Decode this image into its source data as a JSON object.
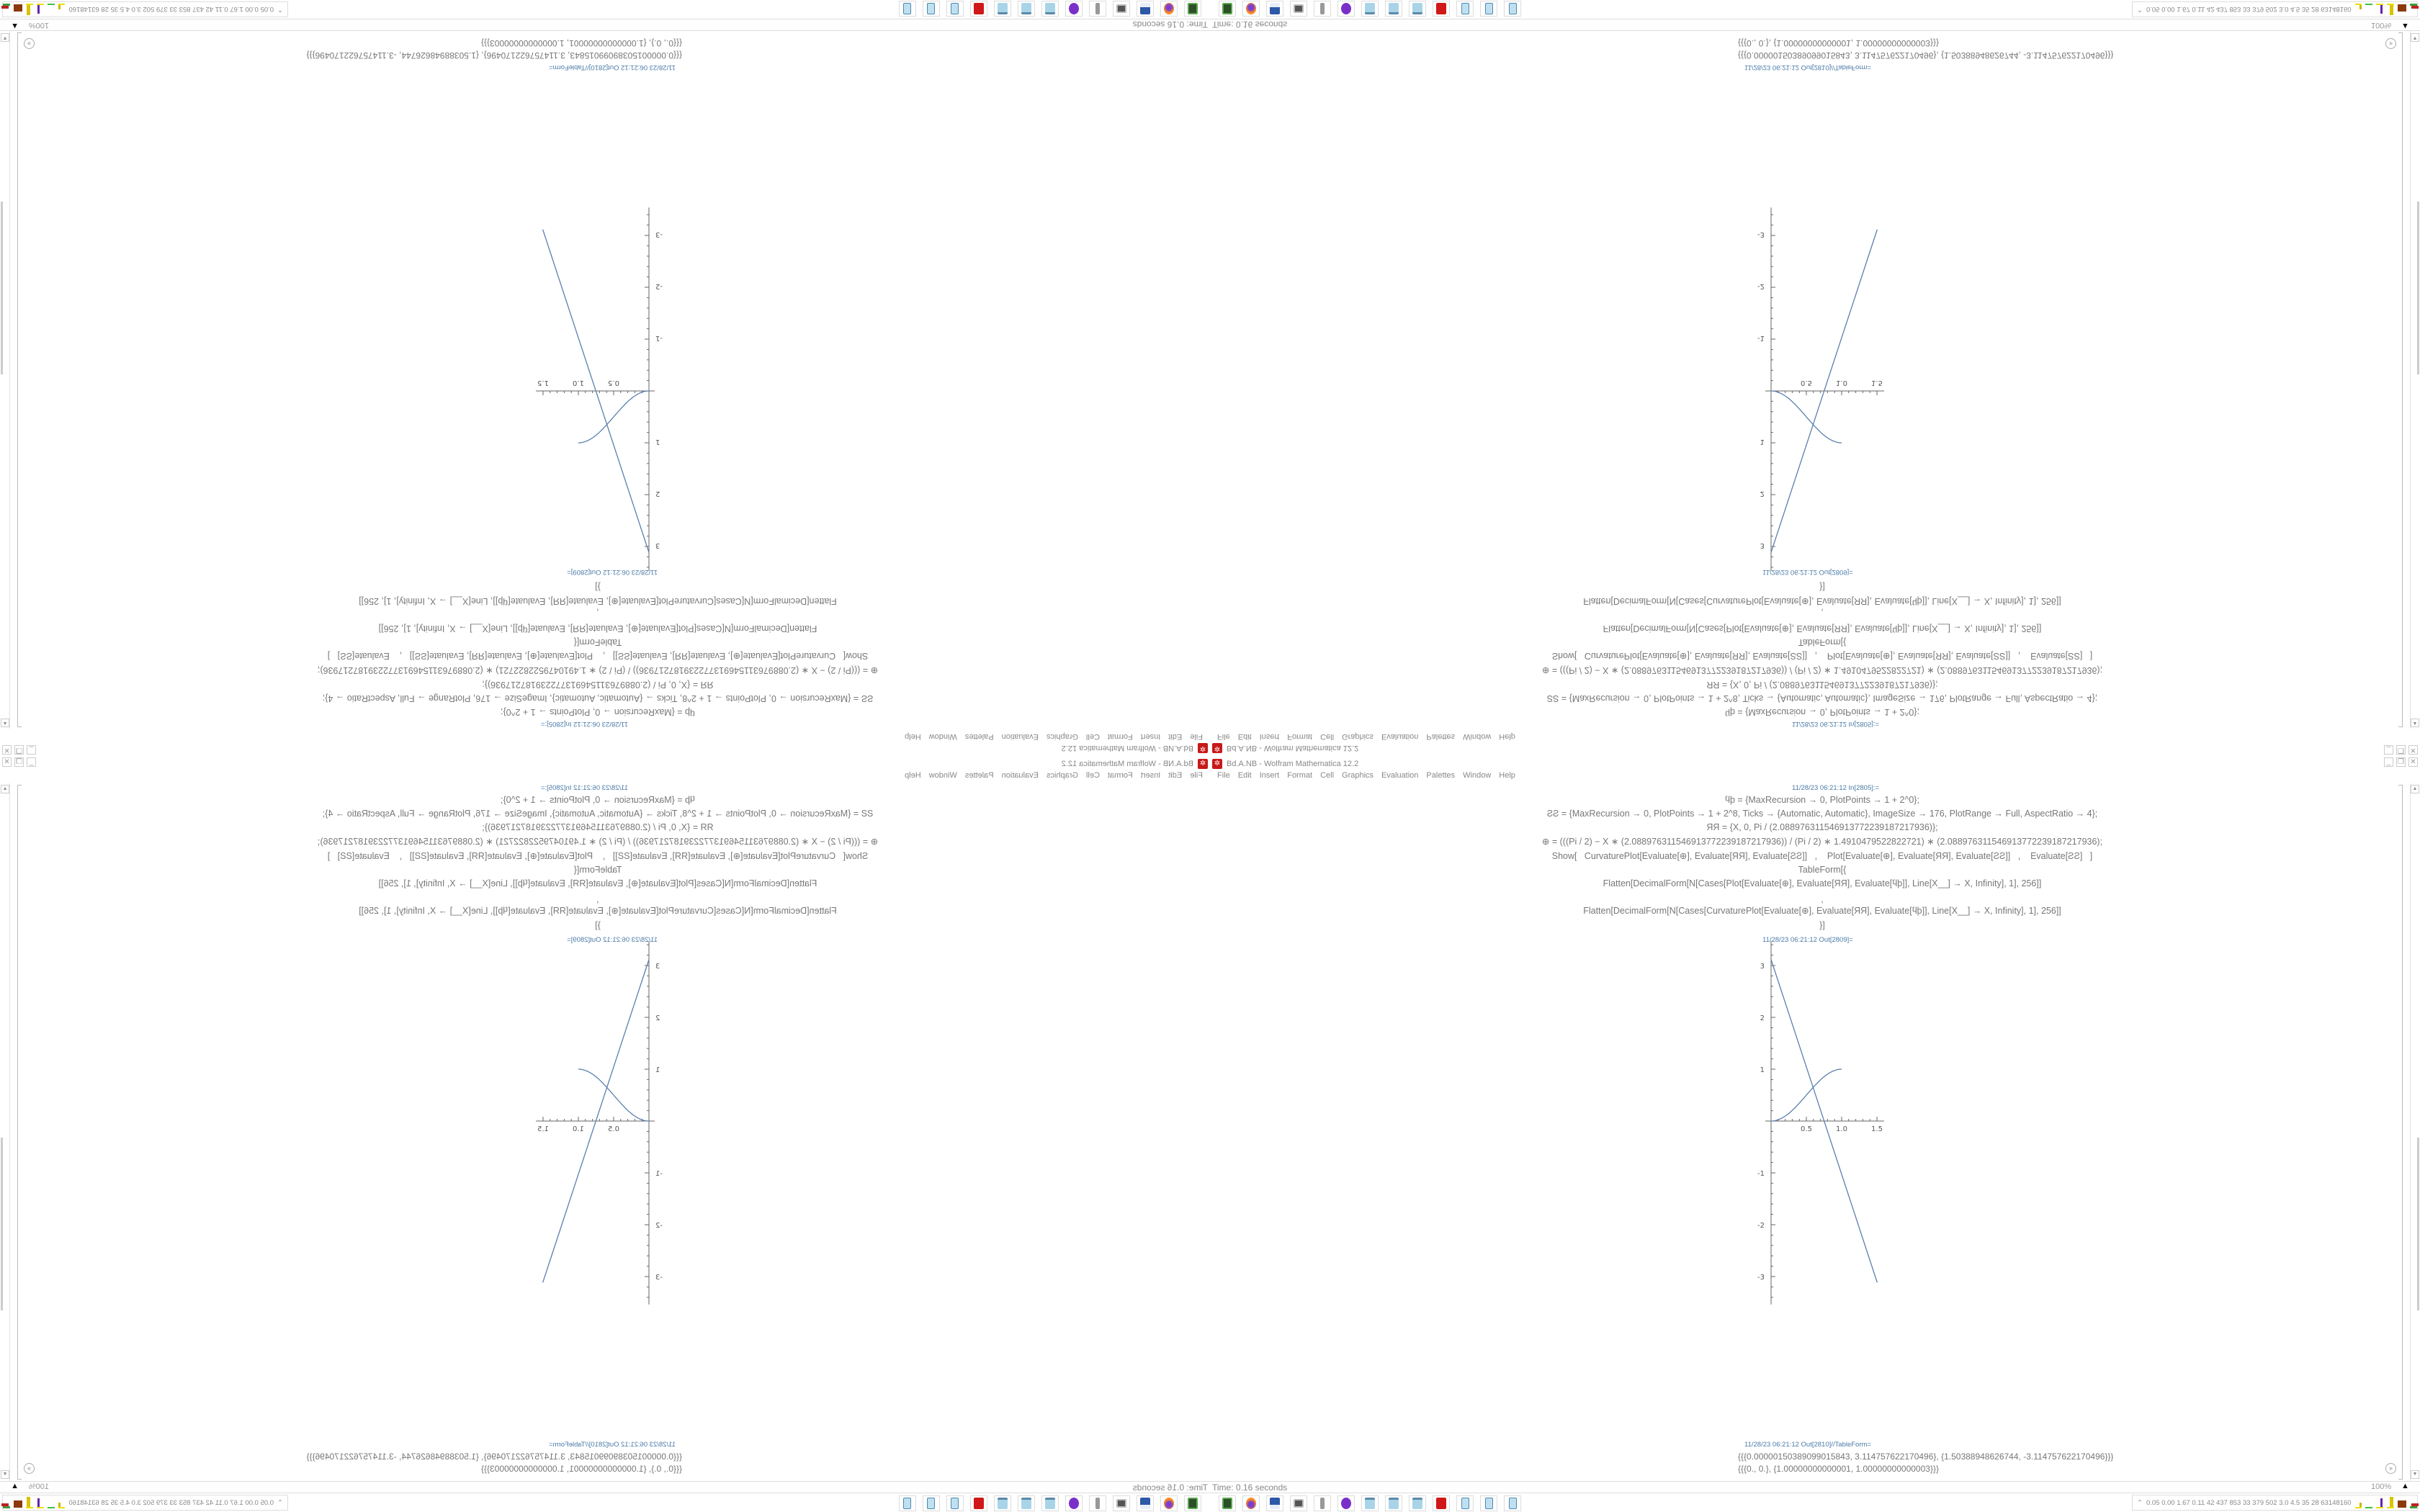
{
  "window": {
    "title": "Bd.A.NB - Wolfram Mathematica 12.2",
    "app_icon": "wolfram-mathematica-icon",
    "controls": [
      "_",
      "❐",
      "✕"
    ]
  },
  "menu": {
    "items": [
      "File",
      "Edit",
      "Insert",
      "Format",
      "Cell",
      "Graphics",
      "Evaluation",
      "Palettes",
      "Window",
      "Help"
    ]
  },
  "notebook": {
    "input_label": "11/28/23 06:21:12 In[2805]:=",
    "code_lines": [
      "ϥϸ = {MaxRecursion → 0, PlotPoints → 1 + 2^0};",
      "ƧƧ = {MaxRecursion → 0, PlotPoints → 1 + 2^8, Ticks → {Automatic, Automatic}, ImageSize → 176, PlotRange → Full, AspectRatio → 4};",
      "ЯЯ = {X, 0, Pi / (2.088976311546913772239187217936)};",
      "⊕ = (((Pi / 2) − X ∗ (2.088976311546913772239187217936)) / (Pi / 2) ∗ 1.4910479522822721) ∗ (2.088976311546913772239187217936);",
      "Show[   CurvaturePlot[Evaluate[⊕], Evaluate[ЯЯ], Evaluate[ƧƧ]]   ,    Plot[Evaluate[⊕], Evaluate[ЯЯ], Evaluate[ƧƧ]]   ,    Evaluate[ƧƧ]   ]",
      "TableForm[{",
      "Flatten[DecimalForm[N[Cases[Plot[Evaluate[⊕], Evaluate[ЯЯ], Evaluate[ϥϸ]], Line[X__] → X, Infinity], 1], 256]]",
      ",",
      "Flatten[DecimalForm[N[Cases[CurvaturePlot[Evaluate[⊕], Evaluate[ЯЯ], Evaluate[ϥϸ]], Line[X__] → X, Infinity], 1], 256]]",
      "}]"
    ],
    "output_label": "11/28/23 06:21:12 Out[2809]=",
    "table_label": "11/28/23 06:21:12 Out[2810]//TableForm=",
    "table_lines": [
      "{{{0.00000150389099015843, 3.114757622170496}, {1.50388948626744, -3.114757622170496}}}",
      "{{{0., 0.}, {1.00000000000001, 1.00000000000003}}}"
    ]
  },
  "chart_data": {
    "type": "line",
    "x_ticks": [
      "0.5",
      "1.0",
      "1.5"
    ],
    "y_ticks": [
      "3",
      "2",
      "1",
      "-1",
      "-2",
      "-3"
    ],
    "x_tick_values": [
      0.5,
      1.0,
      1.5
    ],
    "y_tick_values": [
      3,
      2,
      1,
      -1,
      -2,
      -3
    ],
    "xlim": [
      0,
      1.55
    ],
    "ylim": [
      -3.4,
      3.4
    ],
    "series": [
      {
        "kind": "straight line",
        "x": [
          1.5e-06,
          1.50388948626744
        ],
        "y": [
          3.114757622170496,
          -3.114757622170496
        ],
        "color": "#5b7fae"
      },
      {
        "kind": "s-curve",
        "x": [
          0,
          1.0
        ],
        "y": [
          0,
          1.0
        ],
        "color": "#5b7fae"
      }
    ]
  },
  "status": {
    "time": "Time: 0.16 seconds",
    "zoom": "100%"
  },
  "taskbar": {
    "icons": [
      "terminal-icon",
      "firefox-icon",
      "floppy-64-icon",
      "monitor-icon",
      "speaker-icon",
      "purple-app-icon",
      "notepad-icon",
      "notepad-icon",
      "notepad-icon",
      "mathematica-icon",
      "calculator-icon",
      "calculator-icon",
      "calculator-icon"
    ]
  },
  "tray": {
    "expand": "⌃",
    "stats": "0.05 0.00 1.67 0.11  42  437  853  33  379  502  3.0  4.5  35  28  63148160"
  }
}
